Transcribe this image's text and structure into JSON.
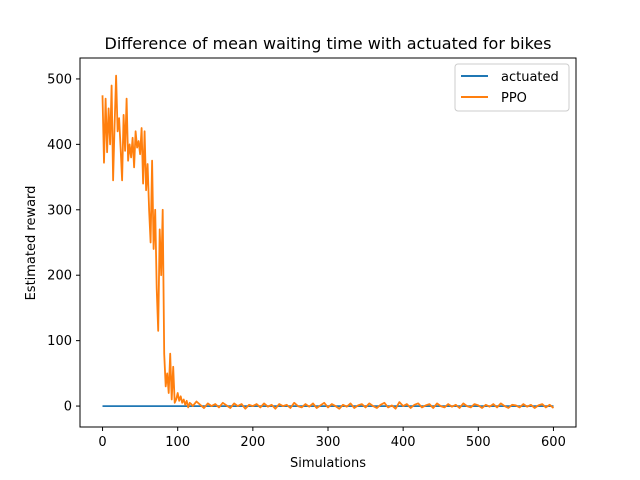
{
  "chart_data": {
    "type": "line",
    "title": "Difference of mean waiting time with actuated for bikes",
    "xlabel": "Simulations",
    "ylabel": "Estimated reward",
    "xlim": [
      -30,
      630
    ],
    "ylim": [
      -32,
      532
    ],
    "xticks": [
      0,
      100,
      200,
      300,
      400,
      500,
      600
    ],
    "yticks": [
      0,
      100,
      200,
      300,
      400,
      500
    ],
    "grid": false,
    "legend_position": "top-right",
    "series": [
      {
        "name": "actuated",
        "color": "#1f77b4",
        "points": [
          [
            0,
            0
          ],
          [
            600,
            0
          ]
        ]
      },
      {
        "name": "PPO",
        "color": "#ff7f0e",
        "points": [
          [
            0,
            475
          ],
          [
            2,
            372
          ],
          [
            4,
            470
          ],
          [
            6,
            388
          ],
          [
            8,
            455
          ],
          [
            10,
            400
          ],
          [
            12,
            490
          ],
          [
            14,
            345
          ],
          [
            16,
            430
          ],
          [
            18,
            505
          ],
          [
            20,
            420
          ],
          [
            22,
            440
          ],
          [
            24,
            395
          ],
          [
            26,
            345
          ],
          [
            28,
            445
          ],
          [
            30,
            390
          ],
          [
            32,
            470
          ],
          [
            34,
            375
          ],
          [
            36,
            400
          ],
          [
            38,
            380
          ],
          [
            40,
            410
          ],
          [
            42,
            365
          ],
          [
            44,
            420
          ],
          [
            46,
            395
          ],
          [
            48,
            405
          ],
          [
            50,
            385
          ],
          [
            52,
            425
          ],
          [
            54,
            340
          ],
          [
            56,
            420
          ],
          [
            58,
            330
          ],
          [
            60,
            370
          ],
          [
            62,
            300
          ],
          [
            64,
            250
          ],
          [
            66,
            375
          ],
          [
            68,
            240
          ],
          [
            70,
            300
          ],
          [
            72,
            180
          ],
          [
            74,
            115
          ],
          [
            76,
            270
          ],
          [
            78,
            200
          ],
          [
            80,
            300
          ],
          [
            82,
            80
          ],
          [
            84,
            30
          ],
          [
            86,
            50
          ],
          [
            88,
            20
          ],
          [
            90,
            80
          ],
          [
            92,
            10
          ],
          [
            94,
            60
          ],
          [
            96,
            5
          ],
          [
            98,
            10
          ],
          [
            100,
            20
          ],
          [
            102,
            8
          ],
          [
            104,
            15
          ],
          [
            106,
            5
          ],
          [
            108,
            10
          ],
          [
            110,
            2
          ],
          [
            112,
            8
          ],
          [
            114,
            -2
          ],
          [
            116,
            5
          ],
          [
            118,
            3
          ],
          [
            120,
            0
          ],
          [
            125,
            7
          ],
          [
            130,
            2
          ],
          [
            135,
            -3
          ],
          [
            140,
            4
          ],
          [
            145,
            0
          ],
          [
            150,
            3
          ],
          [
            155,
            -2
          ],
          [
            160,
            5
          ],
          [
            165,
            1
          ],
          [
            170,
            -3
          ],
          [
            175,
            4
          ],
          [
            180,
            0
          ],
          [
            185,
            3
          ],
          [
            190,
            -4
          ],
          [
            195,
            2
          ],
          [
            200,
            0
          ],
          [
            205,
            3
          ],
          [
            210,
            -2
          ],
          [
            215,
            4
          ],
          [
            220,
            -1
          ],
          [
            225,
            2
          ],
          [
            230,
            -4
          ],
          [
            235,
            3
          ],
          [
            240,
            0
          ],
          [
            245,
            2
          ],
          [
            250,
            -3
          ],
          [
            255,
            5
          ],
          [
            260,
            0
          ],
          [
            265,
            -2
          ],
          [
            270,
            3
          ],
          [
            275,
            -1
          ],
          [
            280,
            4
          ],
          [
            285,
            -3
          ],
          [
            290,
            1
          ],
          [
            295,
            5
          ],
          [
            300,
            -2
          ],
          [
            305,
            3
          ],
          [
            310,
            0
          ],
          [
            315,
            -4
          ],
          [
            320,
            2
          ],
          [
            325,
            -1
          ],
          [
            330,
            4
          ],
          [
            335,
            -3
          ],
          [
            340,
            1
          ],
          [
            345,
            3
          ],
          [
            350,
            -2
          ],
          [
            355,
            4
          ],
          [
            360,
            0
          ],
          [
            365,
            -3
          ],
          [
            370,
            2
          ],
          [
            375,
            5
          ],
          [
            380,
            -2
          ],
          [
            385,
            1
          ],
          [
            390,
            -4
          ],
          [
            395,
            6
          ],
          [
            400,
            0
          ],
          [
            405,
            3
          ],
          [
            410,
            -3
          ],
          [
            415,
            2
          ],
          [
            420,
            4
          ],
          [
            425,
            -2
          ],
          [
            430,
            1
          ],
          [
            435,
            3
          ],
          [
            440,
            -3
          ],
          [
            445,
            4
          ],
          [
            450,
            0
          ],
          [
            455,
            -2
          ],
          [
            460,
            3
          ],
          [
            465,
            -1
          ],
          [
            470,
            2
          ],
          [
            475,
            -3
          ],
          [
            480,
            4
          ],
          [
            485,
            0
          ],
          [
            490,
            -2
          ],
          [
            495,
            3
          ],
          [
            500,
            1
          ],
          [
            505,
            -3
          ],
          [
            510,
            2
          ],
          [
            515,
            -1
          ],
          [
            520,
            3
          ],
          [
            525,
            -2
          ],
          [
            530,
            4
          ],
          [
            535,
            0
          ],
          [
            540,
            -3
          ],
          [
            545,
            2
          ],
          [
            550,
            1
          ],
          [
            555,
            -2
          ],
          [
            560,
            3
          ],
          [
            565,
            -1
          ],
          [
            570,
            2
          ],
          [
            575,
            -3
          ],
          [
            580,
            1
          ],
          [
            585,
            3
          ],
          [
            590,
            -2
          ],
          [
            595,
            2
          ],
          [
            600,
            -3
          ]
        ]
      }
    ]
  }
}
